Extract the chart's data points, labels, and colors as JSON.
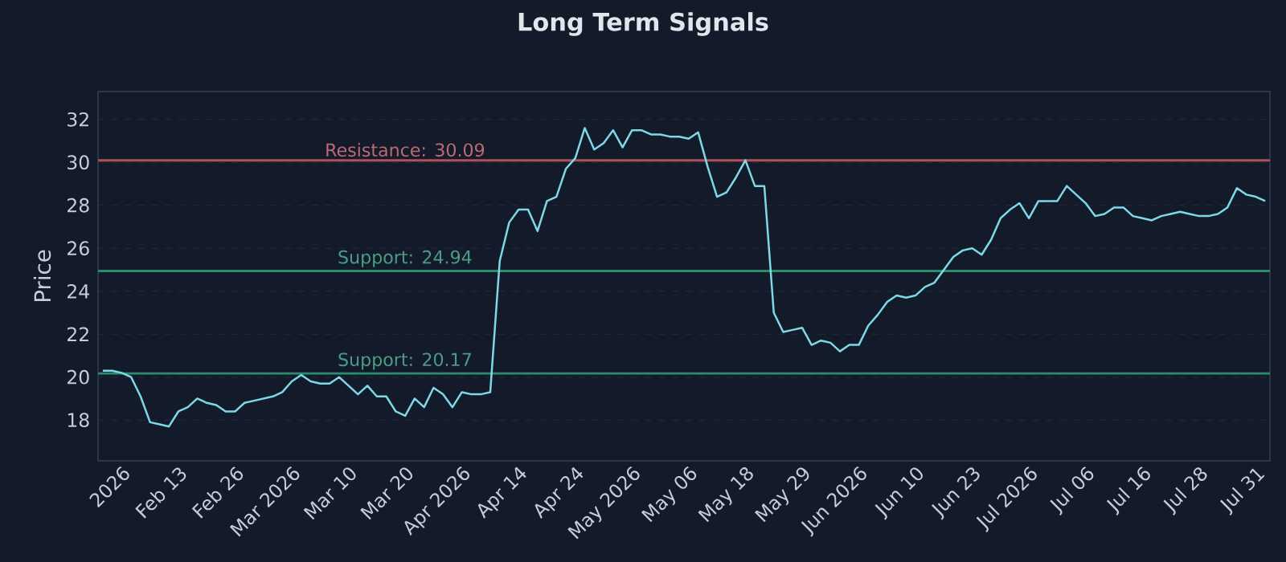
{
  "chart_data": {
    "type": "line",
    "title": "Long Term Signals",
    "ylabel": "Price",
    "categories": [
      null,
      null,
      "2026",
      null,
      null,
      null,
      null,
      null,
      "Feb 13",
      null,
      null,
      null,
      null,
      null,
      "Feb 26",
      null,
      null,
      null,
      null,
      null,
      "Mar 2026",
      null,
      null,
      null,
      null,
      null,
      "Mar 10",
      null,
      null,
      null,
      null,
      null,
      "Mar 20",
      null,
      null,
      null,
      null,
      null,
      "Apr 2026",
      null,
      null,
      null,
      null,
      null,
      "Apr 14",
      null,
      null,
      null,
      null,
      null,
      "Apr 24",
      null,
      null,
      null,
      null,
      null,
      "May 2026",
      null,
      null,
      null,
      null,
      null,
      "May 06",
      null,
      null,
      null,
      null,
      null,
      "May 18",
      null,
      null,
      null,
      null,
      null,
      "May 29",
      null,
      null,
      null,
      null,
      null,
      "Jun 2026",
      null,
      null,
      null,
      null,
      null,
      "Jun 10",
      null,
      null,
      null,
      null,
      null,
      "Jun 23",
      null,
      null,
      null,
      null,
      null,
      "Jul 2026",
      null,
      null,
      null,
      null,
      null,
      "Jul 06",
      null,
      null,
      null,
      null,
      null,
      "Jul 16",
      null,
      null,
      null,
      null,
      null,
      "Jul 28",
      null,
      null,
      null,
      null,
      null,
      "Jul 31",
      null
    ],
    "series": [
      {
        "color": "#7dd8e8",
        "values": [
          20.3,
          20.3,
          20.2,
          20.0,
          19.1,
          17.9,
          17.8,
          17.7,
          18.4,
          18.6,
          19.0,
          18.8,
          18.7,
          18.4,
          18.4,
          18.8,
          18.9,
          19.0,
          19.1,
          19.3,
          19.8,
          20.1,
          19.8,
          19.7,
          19.7,
          20.0,
          19.6,
          19.2,
          19.6,
          19.1,
          19.1,
          18.4,
          18.2,
          19.0,
          18.6,
          19.5,
          19.2,
          18.6,
          19.3,
          19.2,
          19.2,
          19.3,
          25.4,
          27.2,
          27.8,
          27.8,
          26.8,
          28.2,
          28.4,
          29.7,
          30.2,
          31.6,
          30.6,
          30.9,
          31.5,
          30.7,
          31.5,
          31.5,
          31.3,
          31.3,
          31.2,
          31.2,
          31.1,
          31.4,
          29.8,
          28.4,
          28.6,
          29.3,
          30.1,
          28.9,
          28.9,
          23.0,
          22.1,
          22.2,
          22.3,
          21.5,
          21.7,
          21.6,
          21.2,
          21.5,
          21.5,
          22.4,
          22.9,
          23.5,
          23.8,
          23.7,
          23.8,
          24.2,
          24.4,
          25.0,
          25.6,
          25.9,
          26.0,
          25.7,
          26.4,
          27.4,
          27.8,
          28.1,
          27.4,
          28.2,
          28.2,
          28.2,
          28.9,
          28.5,
          28.1,
          27.5,
          27.6,
          27.9,
          27.9,
          27.5,
          27.4,
          27.3,
          27.5,
          27.6,
          27.7,
          27.6,
          27.5,
          27.5,
          27.6,
          27.9,
          28.8,
          28.5,
          28.4,
          28.2
        ]
      }
    ],
    "ylim": [
      16.1,
      33.3
    ],
    "yticks": [
      18,
      20,
      22,
      24,
      26,
      28,
      30,
      32
    ],
    "grid": "y",
    "ref_lines": [
      {
        "axis": "y",
        "value": 30.09,
        "label": "Resistance: 30.09",
        "color": "#b0505a"
      },
      {
        "axis": "y",
        "value": 24.94,
        "label": "Support: 24.94",
        "color": "#2a8c6c"
      },
      {
        "axis": "y",
        "value": 20.17,
        "label": "Support: 20.17",
        "color": "#2a8c6c"
      }
    ]
  }
}
